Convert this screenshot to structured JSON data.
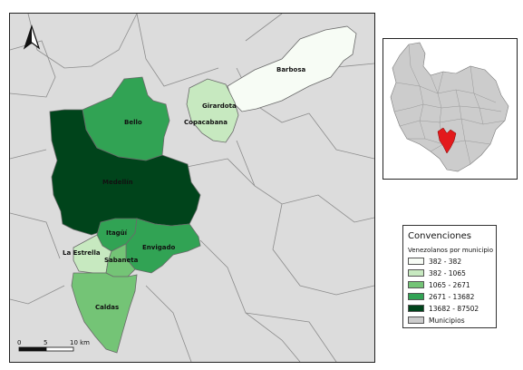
{
  "map": {
    "municipalities": [
      {
        "name": "Barbosa",
        "class": 0
      },
      {
        "name": "Girardota",
        "class": 1
      },
      {
        "name": "Copacabana",
        "class": 1
      },
      {
        "name": "Bello",
        "class": 3
      },
      {
        "name": "Medellín",
        "class": 4
      },
      {
        "name": "Itagüí",
        "class": 3
      },
      {
        "name": "Envigado",
        "class": 3
      },
      {
        "name": "La Estrella",
        "class": 1
      },
      {
        "name": "Sabaneta",
        "class": 2
      },
      {
        "name": "Caldas",
        "class": 2
      }
    ],
    "north_arrow": "north-arrow-icon",
    "scale_bar": {
      "labels": [
        "0",
        "5",
        "10 km"
      ]
    }
  },
  "legend": {
    "title": "Convenciones",
    "subtitle": "Venezolanos por municipio",
    "items": [
      {
        "label": "382 - 382",
        "color": "#f7fcf5"
      },
      {
        "label": "382 - 1065",
        "color": "#c7e9c0"
      },
      {
        "label": "1065 - 2671",
        "color": "#74c476"
      },
      {
        "label": "2671 - 13682",
        "color": "#31a354"
      },
      {
        "label": "13682 - 87502",
        "color": "#00441b"
      },
      {
        "label": "Municipios",
        "color": "#cccccc"
      }
    ]
  },
  "inset": {
    "highlight_color": "#e31a1c",
    "base_color": "#cccccc"
  }
}
